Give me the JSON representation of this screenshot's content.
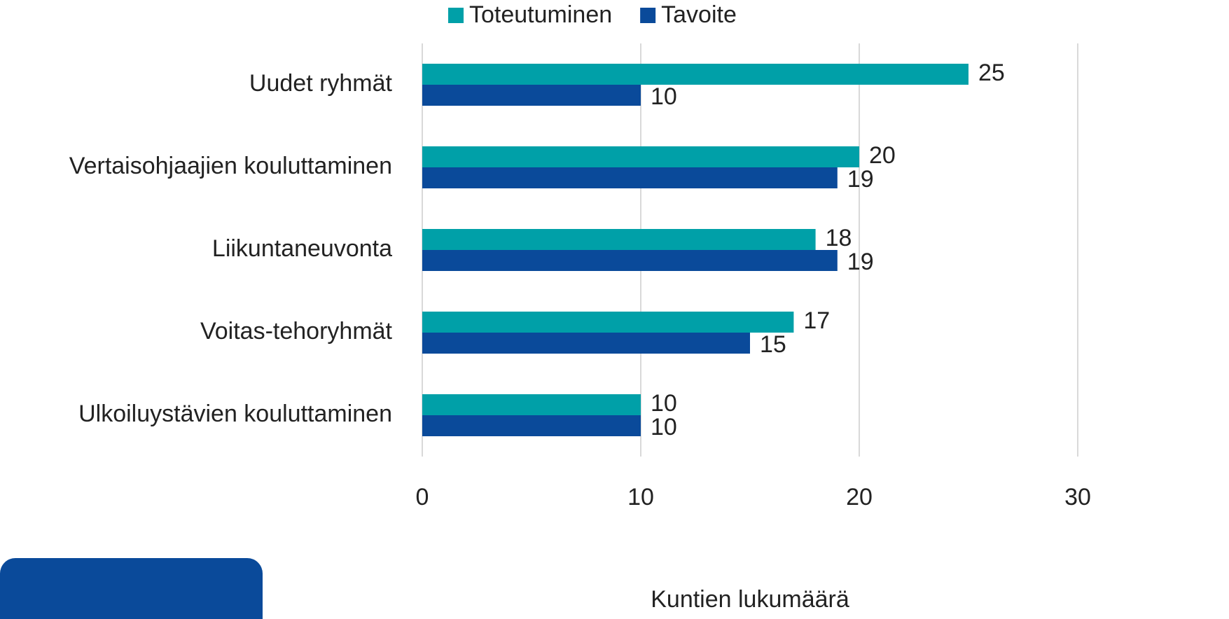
{
  "chart_data": {
    "type": "hbar",
    "categories": [
      "Uudet ryhmät",
      "Vertaisohjaajien kouluttaminen",
      "Liikuntaneuvonta",
      "Voitas-tehoryhmät",
      "Ulkoiluystävien kouluttaminen"
    ],
    "series": [
      {
        "name": "Toteutuminen",
        "color": "#00a0a8",
        "values": [
          25,
          20,
          18,
          17,
          10
        ]
      },
      {
        "name": "Tavoite",
        "color": "#0a4a9a",
        "values": [
          10,
          19,
          19,
          15,
          10
        ]
      }
    ],
    "xlabel": "Kuntien lukumäärä",
    "xlim": [
      0,
      30
    ],
    "xticks": [
      0,
      10,
      20,
      30
    ],
    "grid": true,
    "legend": "top"
  }
}
